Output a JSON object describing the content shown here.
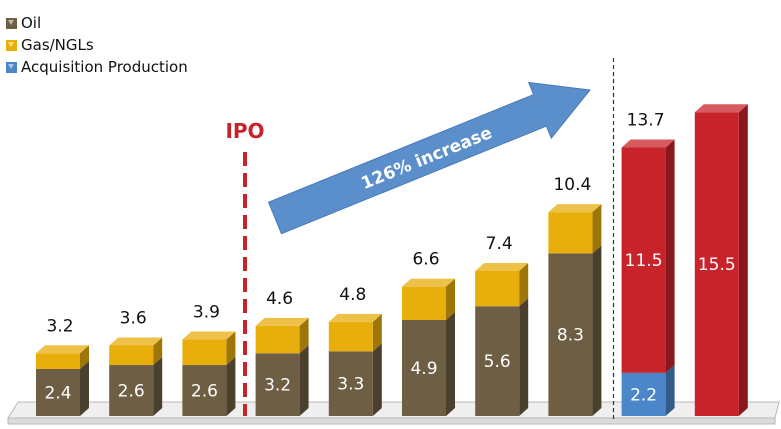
{
  "chart_data": {
    "type": "bar",
    "stacked": true,
    "categories": [
      "",
      "",
      "",
      "",
      "",
      "",
      "",
      "",
      "",
      ""
    ],
    "series": [
      {
        "name": "Oil",
        "color": "#6E5E44",
        "values": [
          2.4,
          2.6,
          2.6,
          3.2,
          3.3,
          4.9,
          5.6,
          8.3,
          null,
          null
        ]
      },
      {
        "name": "Gas/NGLs",
        "color": "#E8AE0C",
        "values": [
          0.8,
          1.0,
          1.3,
          1.4,
          1.5,
          1.7,
          1.8,
          2.1,
          null,
          null
        ]
      },
      {
        "name": "Acquisition Production",
        "color": "#4A86C8",
        "values": [
          null,
          null,
          null,
          null,
          null,
          null,
          null,
          null,
          2.2,
          null
        ]
      },
      {
        "name": "",
        "color": "#C8232B",
        "values": [
          null,
          null,
          null,
          null,
          null,
          null,
          null,
          null,
          11.5,
          15.5
        ]
      }
    ],
    "totals": [
      "3.2",
      "3.6",
      "3.9",
      "4.6",
      "4.8",
      "6.6",
      "7.4",
      "10.4",
      "13.7",
      ""
    ],
    "segment_labels": {
      "oil": [
        "2.4",
        "2.6",
        "2.6",
        "3.2",
        "3.3",
        "4.9",
        "5.6",
        "8.3",
        "",
        ""
      ],
      "red": [
        "",
        "",
        "",
        "",
        "",
        "",
        "",
        "",
        "11.5",
        "15.5"
      ],
      "acq": [
        "",
        "",
        "",
        "",
        "",
        "",
        "",
        "",
        "2.2",
        ""
      ]
    },
    "annotations": {
      "ipo": "IPO",
      "arrow": "126% increase"
    },
    "legend_position": "top-left",
    "grid": false
  }
}
